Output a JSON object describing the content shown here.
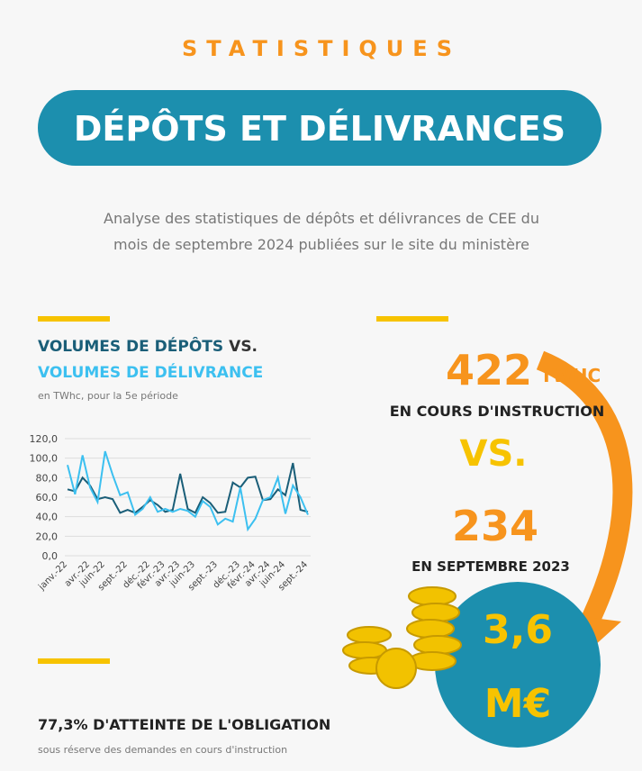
{
  "header": {
    "kicker": "STATISTIQUES",
    "title": "DÉPÔTS ET DÉLIVRANCES",
    "description": [
      "Analyse des statistiques de dépôts et délivrances de CEE du",
      "mois de septembre 2024 publiées sur le site du ministère"
    ]
  },
  "chart_data": {
    "type": "line",
    "title_joiner": "VS.",
    "subtitle": "en TWhc, pour la 5e période",
    "categories": [
      "janv.-22",
      null,
      null,
      "avr.-22",
      null,
      "juin-22",
      null,
      null,
      "sept.-22",
      null,
      null,
      "déc.-22",
      null,
      "févr.-23",
      null,
      "avr.-23",
      null,
      "juin-23",
      null,
      null,
      "sept.-23",
      null,
      null,
      "déc.-23",
      null,
      "févr.-24",
      null,
      "avr.-24",
      null,
      "juin-24",
      null,
      null,
      "sept.-24"
    ],
    "series": [
      {
        "name": "VOLUMES DE DÉPÔTS",
        "color": "#1a5e78",
        "values": [
          68,
          66,
          80,
          72,
          58,
          60,
          58,
          44,
          47,
          44,
          50,
          57,
          52,
          45,
          47,
          84,
          48,
          44,
          60,
          54,
          44,
          45,
          75,
          70,
          80,
          81,
          57,
          58,
          68,
          62,
          95,
          47,
          45
        ]
      },
      {
        "name": "VOLUMES DE DÉLIVRANCE",
        "color": "#3cc0f0",
        "values": [
          93,
          63,
          103,
          70,
          55,
          107,
          83,
          62,
          65,
          42,
          48,
          60,
          45,
          48,
          45,
          48,
          46,
          40,
          56,
          50,
          32,
          38,
          35,
          70,
          27,
          38,
          57,
          60,
          80,
          43,
          72,
          60,
          42
        ]
      }
    ],
    "ylim": [
      0,
      120
    ],
    "yticks": [
      {
        "value": 0,
        "label": "0,0"
      },
      {
        "value": 20,
        "label": "20,0"
      },
      {
        "value": 40,
        "label": "40,0"
      },
      {
        "value": 60,
        "label": "60,0"
      },
      {
        "value": 80,
        "label": "80,0"
      },
      {
        "value": 100,
        "label": "100,0"
      },
      {
        "value": 120,
        "label": "120,0"
      }
    ],
    "grid": true
  },
  "stats": {
    "current_value": "422",
    "current_unit": "TWHC",
    "current_label": "EN COURS D'INSTRUCTION",
    "versus": "VS.",
    "previous_value": "234",
    "previous_label": "EN SEPTEMBRE 2023",
    "amount": "3,6",
    "amount_unit": "M€",
    "obligation": "77,3% D'ATTEINTE DE L'OBLIGATION",
    "obligation_note": "sous réserve des demandes en cours d'instruction"
  }
}
